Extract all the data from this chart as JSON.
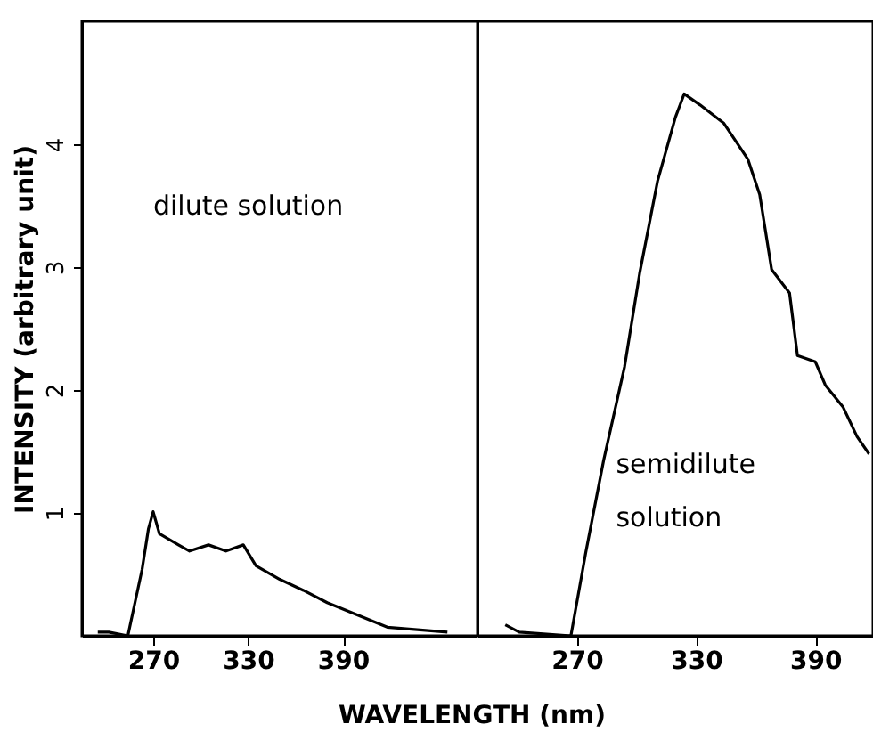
{
  "chart_data": [
    {
      "type": "line",
      "ylabel": "INTENSITY (arbitrary unit)",
      "xlabel": "WAVELENGTH (nm)",
      "annotations": [
        "dilute solution"
      ],
      "x": [
        235,
        242,
        254,
        263,
        267,
        270,
        274,
        286,
        293,
        305,
        316,
        327,
        335,
        350,
        365,
        380,
        399,
        418,
        437,
        456
      ],
      "series": [
        {
          "color": "#000000",
          "values": [
            0.03,
            0.03,
            0,
            0.54,
            0.87,
            1.01,
            0.83,
            0.74,
            0.69,
            0.74,
            0.69,
            0.74,
            0.57,
            0.46,
            0.37,
            0.27,
            0.17,
            0.07,
            0.05,
            0.03
          ]
        }
      ],
      "xlim": [
        225,
        475
      ],
      "xticks": [
        270,
        330,
        390
      ],
      "ylim": [
        0,
        5
      ],
      "yticks": [
        1,
        2,
        3,
        4
      ],
      "grid": false,
      "marker": "none"
    },
    {
      "type": "line",
      "annotations": [
        "semidilute solution"
      ],
      "tick_labels": "x",
      "x": [
        234,
        241,
        267,
        274.5,
        283.5,
        294,
        301.6,
        310.6,
        319.6,
        324,
        332,
        344,
        356,
        362,
        368,
        377,
        381,
        390,
        395,
        404,
        411,
        417
      ],
      "series": [
        {
          "color": "#000000",
          "values": [
            0.09,
            0.03,
            0,
            0.68,
            1.43,
            2.19,
            2.95,
            3.7,
            4.22,
            4.41,
            4.32,
            4.17,
            3.88,
            3.59,
            2.98,
            2.79,
            2.28,
            2.23,
            2.04,
            1.86,
            1.62,
            1.48
          ]
        }
      ],
      "xlim": [
        220,
        419
      ],
      "xticks": [
        270,
        330,
        390
      ],
      "ylim": [
        0,
        5
      ],
      "yticks": [
        1,
        2,
        3,
        4
      ],
      "grid": false,
      "marker": "none"
    }
  ]
}
